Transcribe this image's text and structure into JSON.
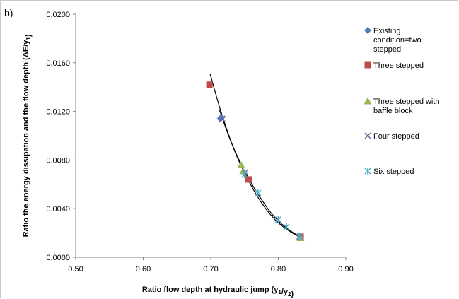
{
  "panel_label": "b)",
  "chart_data": {
    "type": "scatter",
    "xlabel": "Ratio flow depth at hydraulic jump (y1/y2)",
    "ylabel": "Ratio the energy dissipation and the flow depth (ΔE/y1)",
    "xlim": [
      0.5,
      0.9
    ],
    "ylim": [
      0.0,
      0.02
    ],
    "x_ticks": [
      "0.50",
      "0.60",
      "0.70",
      "0.80",
      "0.90"
    ],
    "y_ticks": [
      "0.0000",
      "0.0040",
      "0.0080",
      "0.0120",
      "0.0160",
      "0.0200"
    ],
    "grid": false,
    "legend_position": "right",
    "series": [
      {
        "name": "Existing condition=two stepped",
        "marker": "diamond",
        "color": "#4a7ebb",
        "points": [
          [
            0.714,
            0.0114
          ],
          [
            0.716,
            0.0115
          ],
          [
            0.833,
            0.0017
          ]
        ]
      },
      {
        "name": "Three stepped",
        "marker": "square",
        "color": "#be4b48",
        "points": [
          [
            0.698,
            0.0142
          ],
          [
            0.756,
            0.0064
          ],
          [
            0.833,
            0.0017
          ]
        ]
      },
      {
        "name": "Three stepped with baffle block",
        "marker": "triangle",
        "color": "#98b954",
        "points": [
          [
            0.745,
            0.0076
          ],
          [
            0.748,
            0.0071
          ],
          [
            0.833,
            0.0016
          ]
        ]
      },
      {
        "name": "Four stepped",
        "marker": "x",
        "color": "#7d60a0",
        "points": [
          [
            0.717,
            0.0114
          ],
          [
            0.751,
            0.007
          ],
          [
            0.8,
            0.0031
          ],
          [
            0.832,
            0.0017
          ]
        ]
      },
      {
        "name": "Six stepped",
        "marker": "star",
        "color": "#4bacc6",
        "points": [
          [
            0.75,
            0.0068
          ],
          [
            0.77,
            0.0053
          ],
          [
            0.8,
            0.0031
          ],
          [
            0.812,
            0.0025
          ],
          [
            0.831,
            0.0017
          ]
        ]
      }
    ],
    "trendlines": [
      {
        "points": [
          [
            0.699,
            0.0151
          ],
          [
            0.715,
            0.012
          ],
          [
            0.735,
            0.0088
          ],
          [
            0.755,
            0.0064
          ],
          [
            0.775,
            0.0045
          ],
          [
            0.795,
            0.0031
          ],
          [
            0.815,
            0.0022
          ],
          [
            0.834,
            0.0016
          ]
        ]
      },
      {
        "points": [
          [
            0.713,
            0.0121
          ],
          [
            0.73,
            0.0095
          ],
          [
            0.75,
            0.0071
          ],
          [
            0.77,
            0.0052
          ],
          [
            0.79,
            0.0036
          ],
          [
            0.81,
            0.0025
          ],
          [
            0.834,
            0.0016
          ]
        ]
      }
    ]
  }
}
